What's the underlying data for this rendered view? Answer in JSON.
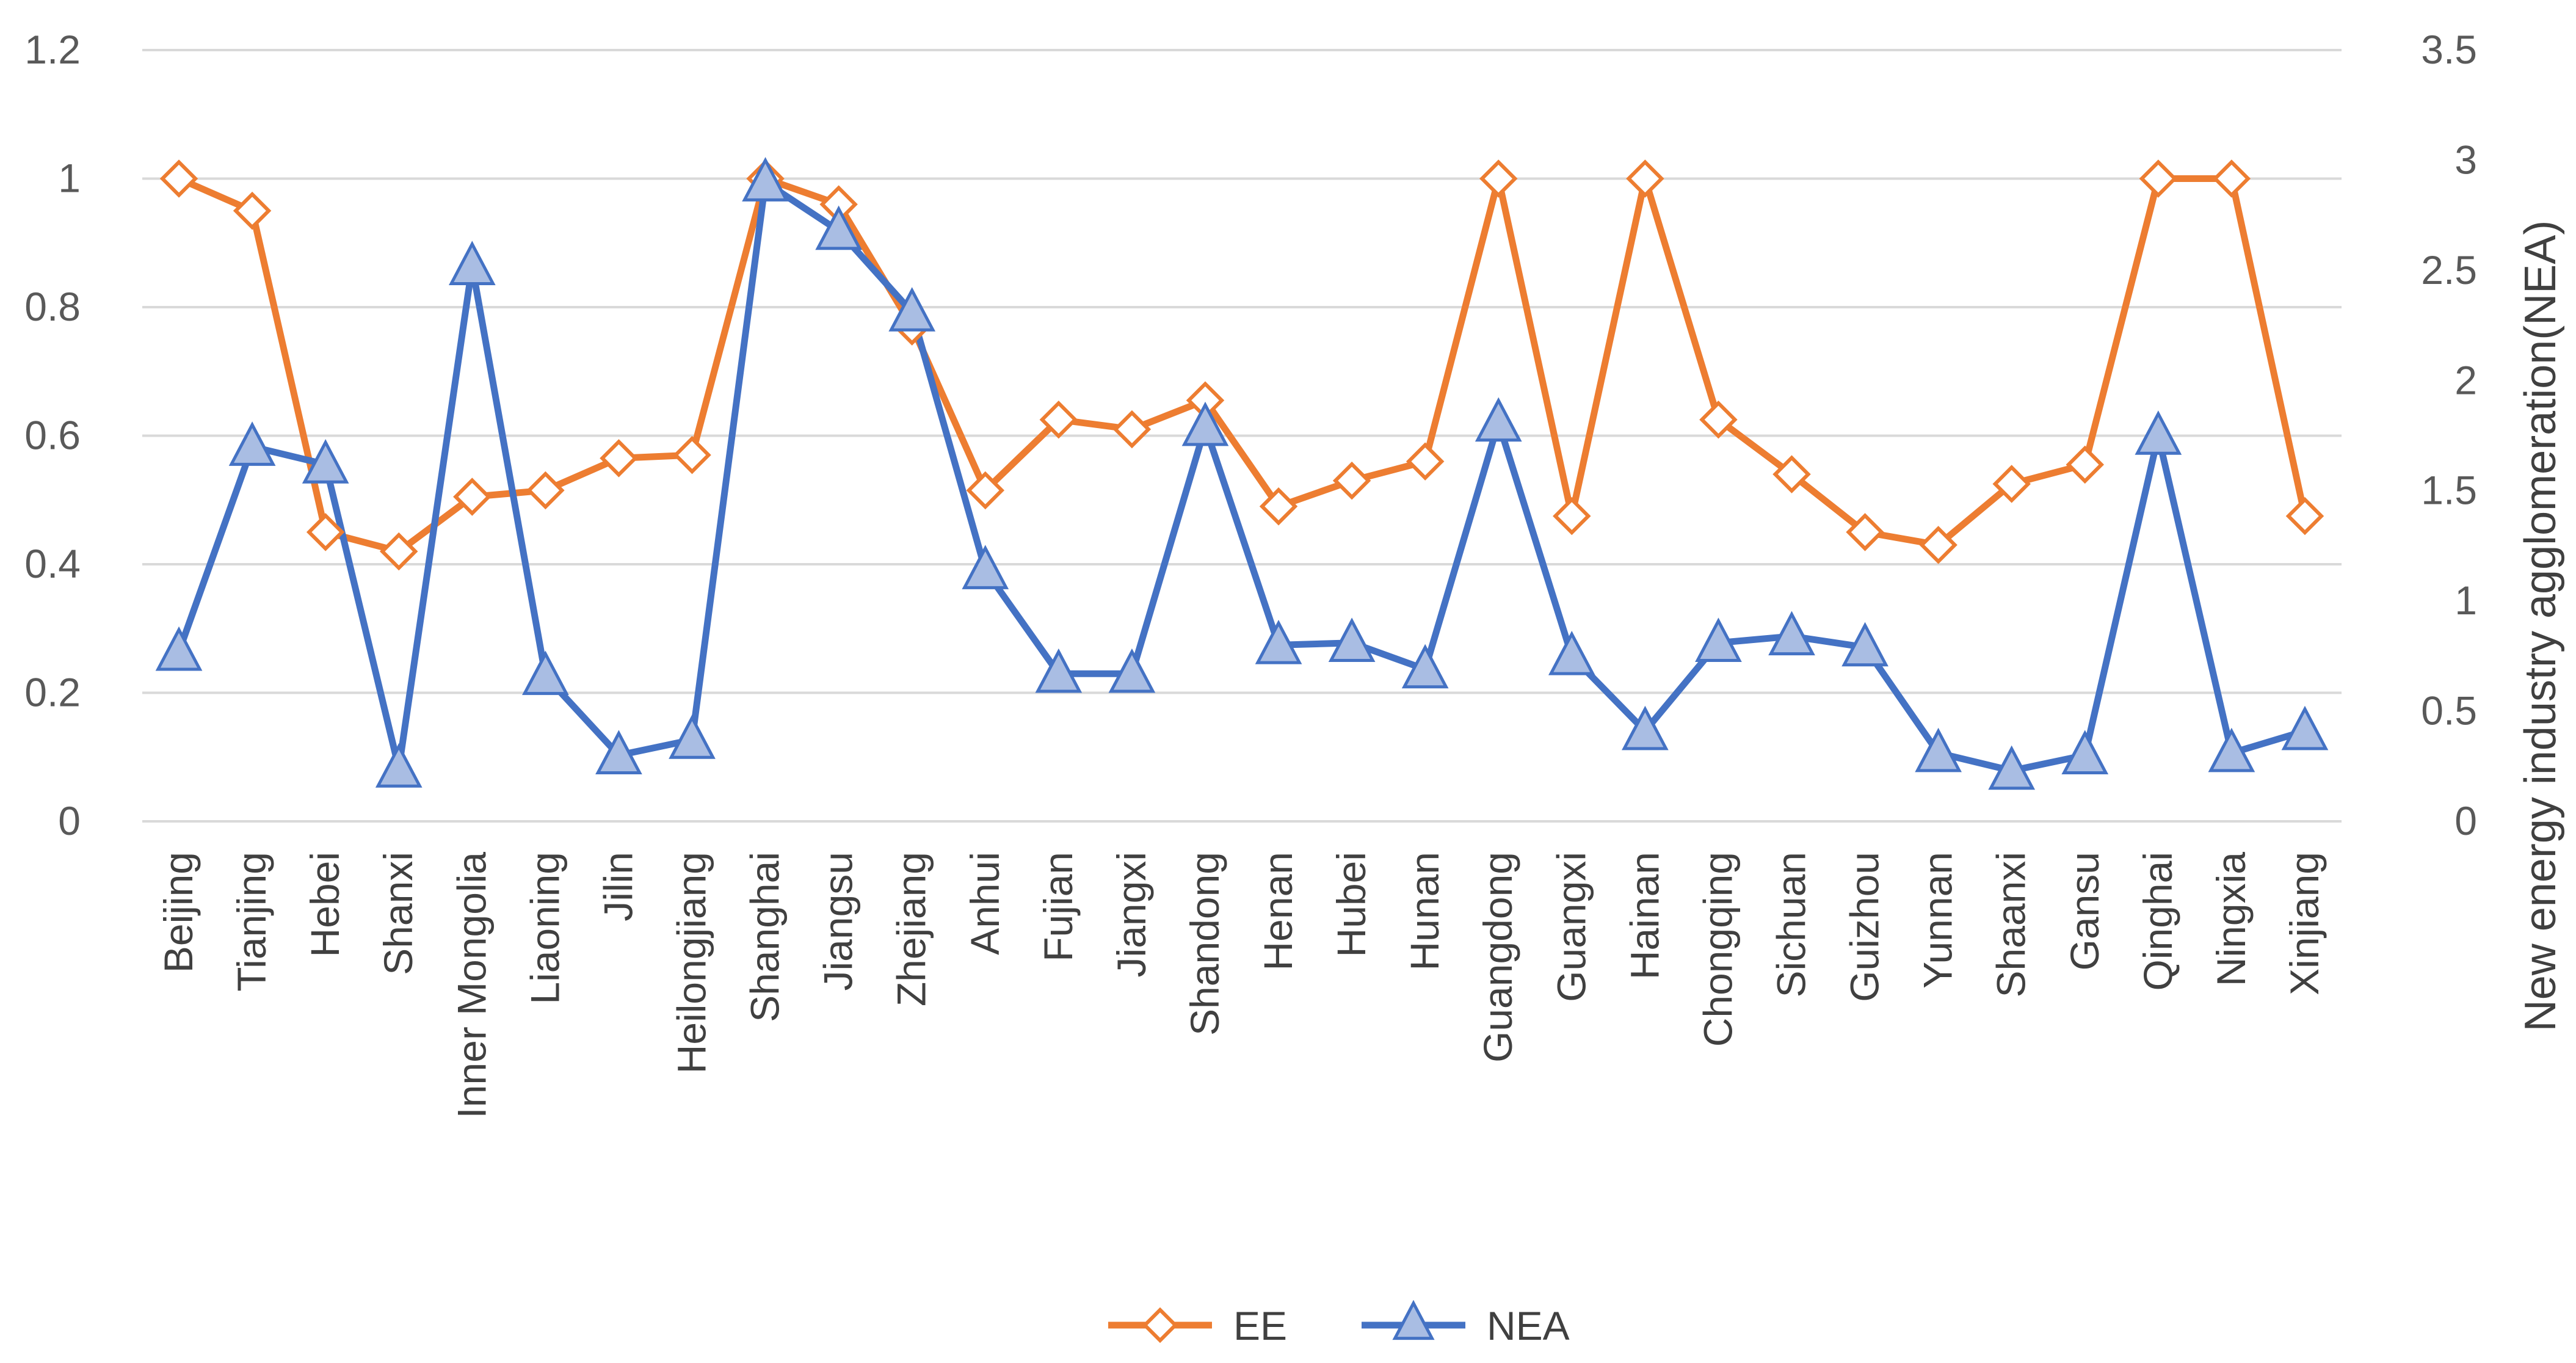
{
  "chart_data": {
    "type": "line",
    "title": "",
    "categories": [
      "Beijing",
      "Tianjing",
      "Hebei",
      "Shanxi",
      "Inner Mongolia",
      "Liaoning",
      "Jilin",
      "Heilongjiang",
      "Shanghai",
      "Jiangsu",
      "Zhejiang",
      "Anhui",
      "Fujian",
      "Jiangxi",
      "Shandong",
      "Henan",
      "Hubei",
      "Hunan",
      "Guangdong",
      "Guangxi",
      "Hainan",
      "Chongqing",
      "Sichuan",
      "Guizhou",
      "Yunnan",
      "Shaanxi",
      "Gansu",
      "Qinghai",
      "Ningxia",
      "Xinjiang"
    ],
    "xlabel": "",
    "ylabel": "",
    "y2label": "New energy industry agglomeration(NEA)",
    "ylim": [
      0,
      1.2
    ],
    "y2lim": [
      0,
      3.5
    ],
    "yticks": [
      "0",
      "0.2",
      "0.4",
      "0.6",
      "0.8",
      "1",
      "1.2"
    ],
    "y2ticks": [
      "0",
      "0.5",
      "1",
      "1.5",
      "2",
      "2.5",
      "3",
      "3.5"
    ],
    "grid": true,
    "legend": "bottom",
    "series": [
      {
        "name": "EE",
        "axis": "left",
        "color": "#ED7D31",
        "marker": "diamond",
        "values": [
          1.0,
          0.95,
          0.45,
          0.42,
          0.505,
          0.515,
          0.565,
          0.57,
          1.0,
          0.96,
          0.77,
          0.515,
          0.625,
          0.61,
          0.655,
          0.49,
          0.53,
          0.56,
          1.0,
          0.475,
          1.0,
          0.625,
          0.54,
          0.45,
          0.43,
          0.525,
          0.555,
          1.0,
          1.0,
          0.475
        ]
      },
      {
        "name": "NEA",
        "axis": "right",
        "color": "#4472C4",
        "marker": "triangle",
        "values": [
          0.77,
          1.7,
          1.62,
          0.24,
          2.52,
          0.66,
          0.3,
          0.37,
          2.9,
          2.68,
          2.31,
          1.14,
          0.67,
          0.67,
          1.79,
          0.8,
          0.81,
          0.69,
          1.81,
          0.75,
          0.41,
          0.81,
          0.84,
          0.79,
          0.31,
          0.23,
          0.3,
          1.75,
          0.31,
          0.41
        ]
      }
    ]
  }
}
